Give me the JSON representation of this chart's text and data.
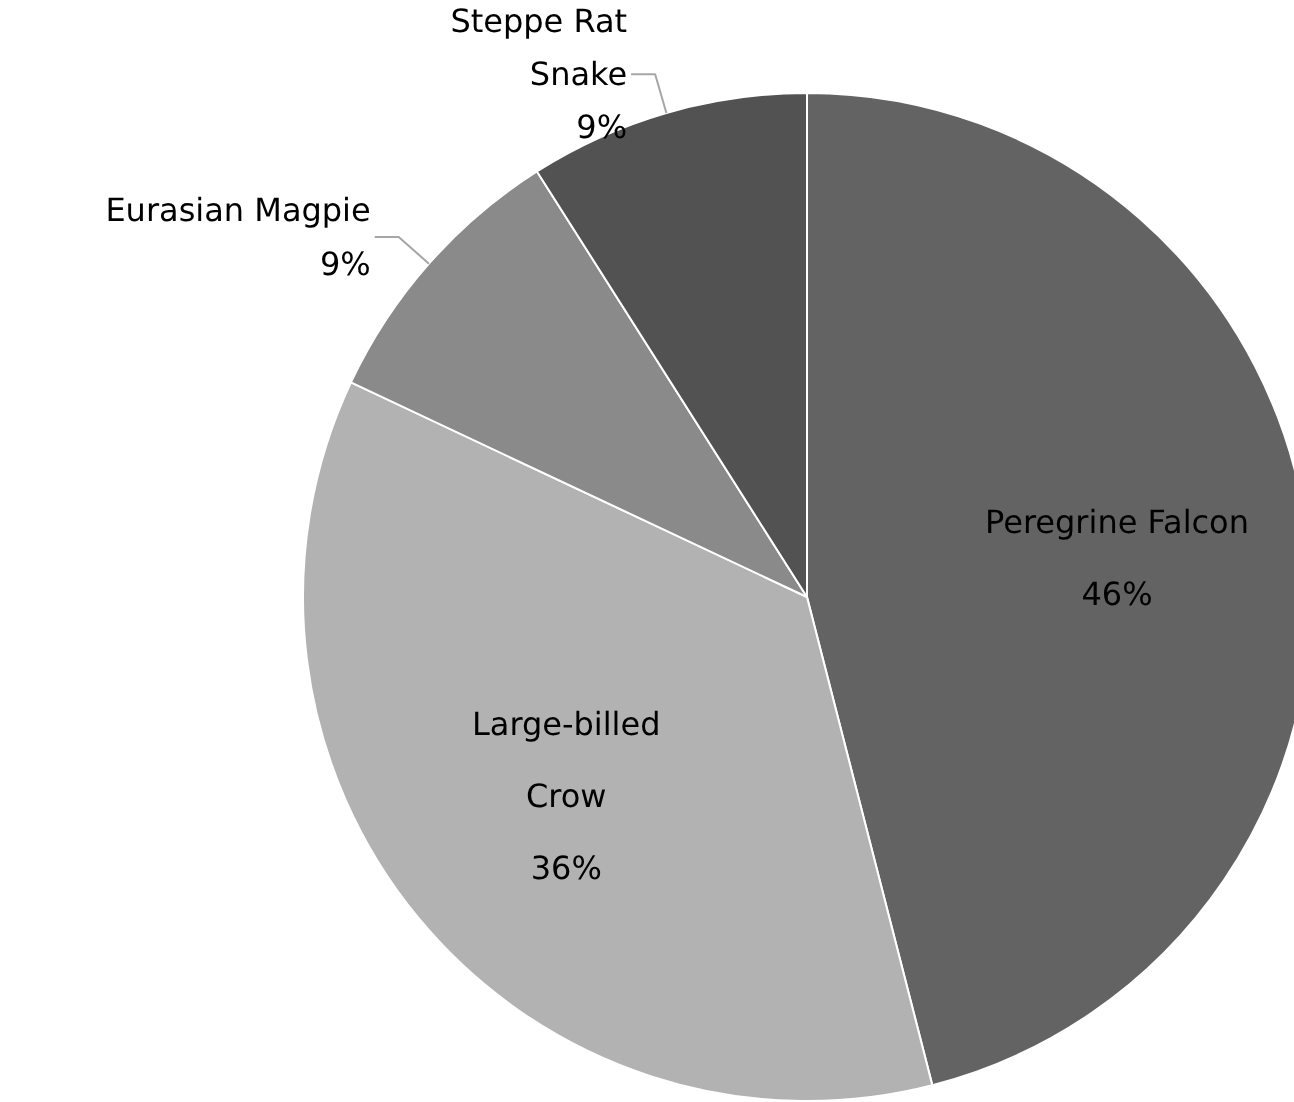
{
  "chart_data": {
    "type": "pie",
    "categories": [
      "Peregrine Falcon",
      "Large-billed Crow",
      "Eurasian Magpie",
      "Steppe Rat Snake"
    ],
    "values": [
      46,
      36,
      9,
      9
    ],
    "colors": [
      "#636363",
      "#b2b2b2",
      "#8a8a8a",
      "#525252"
    ],
    "value_labels": [
      "46%",
      "36%",
      "9%",
      "9%"
    ]
  }
}
